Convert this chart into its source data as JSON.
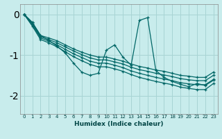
{
  "xlabel": "Humidex (Indice chaleur)",
  "background_color": "#c8ecec",
  "grid_color": "#a8d4d4",
  "line_color": "#006666",
  "xlim": [
    -0.5,
    23.5
  ],
  "ylim": [
    -2.45,
    0.25
  ],
  "yticks": [
    0,
    -1,
    -2
  ],
  "xticks": [
    0,
    1,
    2,
    3,
    4,
    5,
    6,
    7,
    8,
    9,
    10,
    11,
    12,
    13,
    14,
    15,
    16,
    17,
    18,
    19,
    20,
    21,
    22,
    23
  ],
  "bundle_series": [
    [
      0.0,
      -0.2,
      -0.52,
      -0.58,
      -0.65,
      -0.75,
      -0.85,
      -0.93,
      -1.0,
      -1.05,
      -1.05,
      -1.1,
      -1.15,
      -1.22,
      -1.28,
      -1.32,
      -1.37,
      -1.4,
      -1.45,
      -1.5,
      -1.52,
      -1.55,
      -1.55,
      -1.42
    ],
    [
      0.0,
      -0.23,
      -0.55,
      -0.62,
      -0.7,
      -0.8,
      -0.9,
      -0.99,
      -1.07,
      -1.12,
      -1.12,
      -1.17,
      -1.22,
      -1.3,
      -1.36,
      -1.4,
      -1.45,
      -1.49,
      -1.53,
      -1.58,
      -1.61,
      -1.63,
      -1.63,
      -1.5
    ],
    [
      0.0,
      -0.26,
      -0.58,
      -0.66,
      -0.75,
      -0.86,
      -0.97,
      -1.06,
      -1.15,
      -1.2,
      -1.2,
      -1.25,
      -1.31,
      -1.39,
      -1.45,
      -1.5,
      -1.55,
      -1.59,
      -1.63,
      -1.68,
      -1.71,
      -1.73,
      -1.73,
      -1.6
    ],
    [
      0.0,
      -0.29,
      -0.62,
      -0.7,
      -0.8,
      -0.92,
      -1.04,
      -1.14,
      -1.23,
      -1.29,
      -1.29,
      -1.34,
      -1.4,
      -1.48,
      -1.55,
      -1.6,
      -1.65,
      -1.69,
      -1.73,
      -1.79,
      -1.82,
      -1.85,
      -1.85,
      -1.7
    ]
  ],
  "jagged_series": [
    0.0,
    -0.2,
    -0.52,
    -0.64,
    -0.78,
    -0.95,
    -1.2,
    -1.42,
    -1.5,
    -1.45,
    -0.88,
    -0.75,
    -1.05,
    -1.25,
    -0.15,
    -0.08,
    -1.38,
    -1.55,
    -1.65,
    -1.72,
    -1.78,
    -1.7,
    -1.75,
    -1.62
  ]
}
